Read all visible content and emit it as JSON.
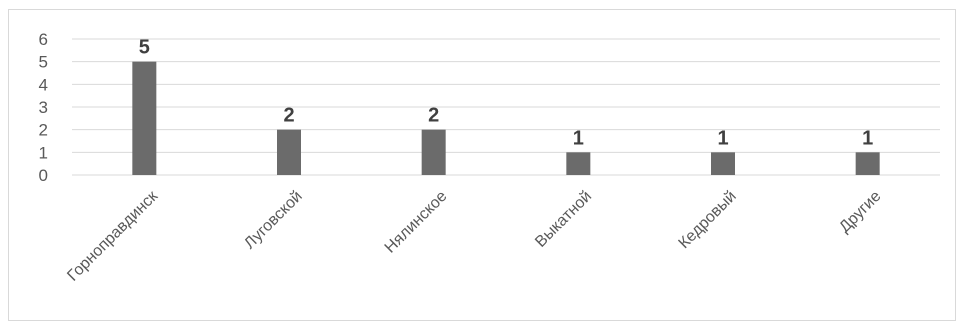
{
  "chart_data": {
    "type": "bar",
    "categories": [
      "Горноправдинск",
      "Луговской",
      "Нялинское",
      "Выкатной",
      "Кедровый",
      "Другие"
    ],
    "values": [
      5,
      2,
      2,
      1,
      1,
      1
    ],
    "title": "",
    "xlabel": "",
    "ylabel": "",
    "ylim": [
      0,
      6
    ],
    "yticks": [
      0,
      1,
      2,
      3,
      4,
      5,
      6
    ],
    "grid": true,
    "legend": "none",
    "data_labels": true,
    "colors": {
      "bar": "#6b6b6b",
      "grid": "#d9d9d9",
      "text": "#595959",
      "label": "#404040"
    }
  }
}
